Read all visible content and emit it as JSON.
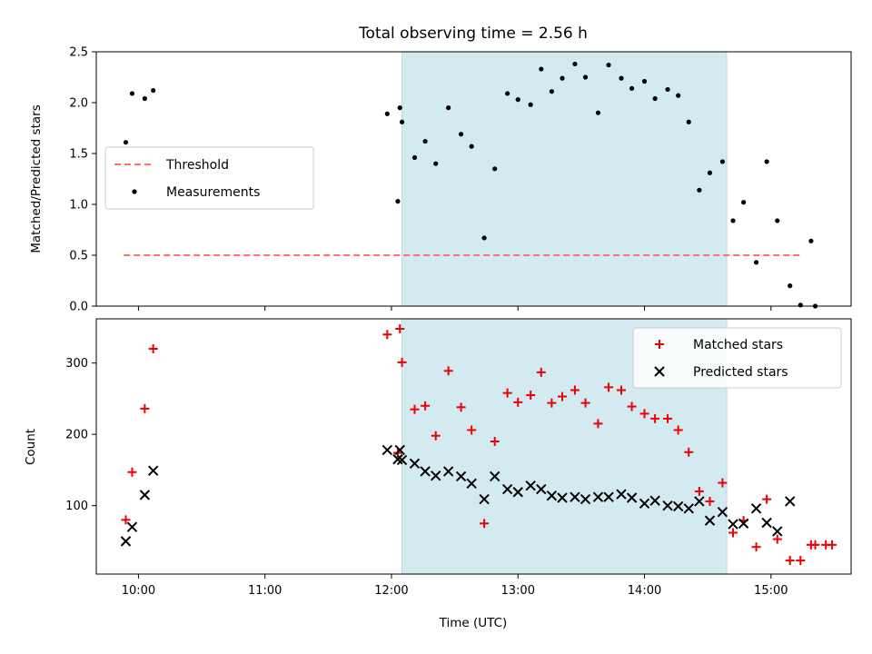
{
  "title": "Total observing time = 2.56 h",
  "xlabel": "Time (UTC)",
  "x_ticks": [
    "10:00",
    "11:00",
    "12:00",
    "13:00",
    "14:00",
    "15:00"
  ],
  "x_range": [
    "09:40",
    "15:38"
  ],
  "shaded_interval": [
    "12:05",
    "14:39"
  ],
  "colors": {
    "shade": "#d3eaf0",
    "threshold": "#ff7070",
    "matched": "#ee0000",
    "predicted": "#000000",
    "measurement": "#000000"
  },
  "chart_data": [
    {
      "type": "scatter",
      "ylabel": "Matched/Predicted stars",
      "ylim": [
        0,
        2.5
      ],
      "yticks": [
        "0.0",
        "0.5",
        "1.0",
        "1.5",
        "2.0",
        "2.5"
      ],
      "legend": {
        "placement": "center-left",
        "entries": [
          "Threshold",
          "Measurements"
        ]
      },
      "threshold": {
        "name": "Threshold",
        "value": 0.5,
        "x_start": "09:53",
        "x_end": "15:15"
      },
      "series": [
        {
          "name": "Measurements",
          "x": [
            "09:54",
            "09:57",
            "10:03",
            "10:07",
            "11:58",
            "12:03",
            "12:04",
            "12:05",
            "12:11",
            "12:16",
            "12:21",
            "12:27",
            "12:33",
            "12:38",
            "12:44",
            "12:49",
            "12:55",
            "13:00",
            "13:06",
            "13:11",
            "13:16",
            "13:21",
            "13:27",
            "13:32",
            "13:38",
            "13:43",
            "13:49",
            "13:54",
            "14:00",
            "14:05",
            "14:11",
            "14:16",
            "14:21",
            "14:26",
            "14:31",
            "14:37",
            "14:42",
            "14:47",
            "14:53",
            "14:58",
            "15:03",
            "15:09",
            "15:14",
            "15:19",
            "15:21"
          ],
          "y": [
            1.61,
            2.09,
            2.04,
            2.12,
            1.89,
            1.03,
            1.95,
            1.81,
            1.46,
            1.62,
            1.4,
            1.95,
            1.69,
            1.57,
            0.67,
            1.35,
            2.09,
            2.03,
            1.98,
            2.33,
            2.11,
            2.24,
            2.38,
            2.25,
            1.9,
            2.37,
            2.24,
            2.14,
            2.21,
            2.04,
            2.13,
            2.07,
            1.81,
            1.14,
            1.31,
            1.42,
            0.84,
            1.02,
            0.43,
            1.42,
            0.84,
            0.2,
            0.01,
            0.64,
            0.0
          ]
        }
      ]
    },
    {
      "type": "scatter",
      "ylabel": "Count",
      "ylim": [
        4,
        362
      ],
      "yticks": [
        "100",
        "200",
        "300"
      ],
      "legend": {
        "placement": "top-right",
        "entries": [
          "Matched stars",
          "Predicted stars"
        ]
      },
      "series": [
        {
          "name": "Matched stars",
          "x": [
            "09:54",
            "09:57",
            "10:03",
            "10:07",
            "11:58",
            "12:03",
            "12:04",
            "12:05",
            "12:11",
            "12:16",
            "12:21",
            "12:27",
            "12:33",
            "12:38",
            "12:44",
            "12:49",
            "12:55",
            "13:00",
            "13:06",
            "13:11",
            "13:16",
            "13:21",
            "13:27",
            "13:32",
            "13:38",
            "13:43",
            "13:49",
            "13:54",
            "14:00",
            "14:05",
            "14:11",
            "14:16",
            "14:21",
            "14:26",
            "14:31",
            "14:37",
            "14:42",
            "14:47",
            "14:53",
            "14:58",
            "15:03",
            "15:09",
            "15:14",
            "15:19",
            "15:21",
            "15:26",
            "15:29"
          ],
          "y": [
            80,
            147,
            236,
            320,
            340,
            174,
            348,
            301,
            235,
            240,
            198,
            289,
            238,
            206,
            75,
            190,
            258,
            245,
            255,
            287,
            244,
            253,
            262,
            244,
            215,
            266,
            262,
            239,
            229,
            222,
            222,
            206,
            175,
            120,
            106,
            132,
            62,
            79,
            42,
            109,
            53,
            23,
            23,
            45,
            45,
            45,
            45
          ]
        },
        {
          "name": "Predicted stars",
          "x": [
            "09:54",
            "09:57",
            "10:03",
            "10:07",
            "11:58",
            "12:03",
            "12:04",
            "12:05",
            "12:11",
            "12:16",
            "12:21",
            "12:27",
            "12:33",
            "12:38",
            "12:44",
            "12:49",
            "12:55",
            "13:00",
            "13:06",
            "13:11",
            "13:16",
            "13:21",
            "13:27",
            "13:32",
            "13:38",
            "13:43",
            "13:49",
            "13:54",
            "14:00",
            "14:05",
            "14:11",
            "14:16",
            "14:21",
            "14:26",
            "14:31",
            "14:37",
            "14:42",
            "14:47",
            "14:53",
            "14:58",
            "15:03",
            "15:09"
          ],
          "y": [
            50,
            70,
            115,
            149,
            178,
            165,
            178,
            164,
            159,
            148,
            142,
            148,
            141,
            131,
            109,
            141,
            123,
            119,
            128,
            123,
            114,
            111,
            112,
            109,
            112,
            112,
            116,
            111,
            103,
            107,
            100,
            99,
            96,
            106,
            79,
            91,
            74,
            75,
            96,
            76,
            64,
            106
          ]
        }
      ]
    }
  ]
}
